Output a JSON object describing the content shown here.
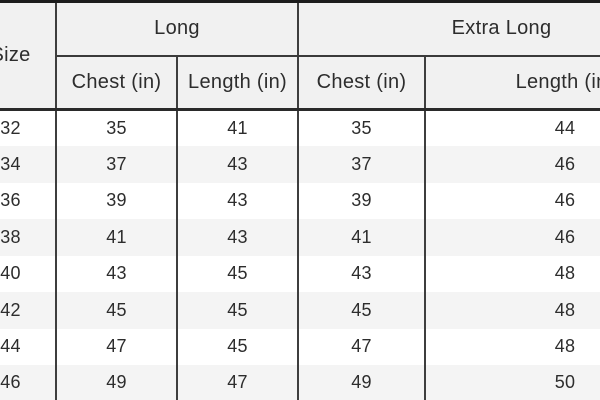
{
  "page": {
    "background": "#ffffff"
  },
  "colors": {
    "header_bg": "#f1f1f1",
    "row_bg": "#ffffff",
    "row_alt_bg": "#f4f4f4",
    "border_dark": "#1c1c1c",
    "border_mid": "#3e3e3e",
    "text": "#2d2d2d"
  },
  "table": {
    "corner_header": "Size",
    "group_headers": [
      "Long",
      "Extra Long"
    ],
    "sub_headers": [
      "Chest (in)",
      "Length (in)",
      "Chest (in)",
      "Length (in)"
    ],
    "rows": [
      [
        "32",
        "35",
        "41",
        "35",
        "44"
      ],
      [
        "34",
        "37",
        "43",
        "37",
        "46"
      ],
      [
        "36",
        "39",
        "43",
        "39",
        "46"
      ],
      [
        "38",
        "41",
        "43",
        "41",
        "46"
      ],
      [
        "40",
        "43",
        "45",
        "43",
        "48"
      ],
      [
        "42",
        "45",
        "45",
        "45",
        "48"
      ],
      [
        "44",
        "47",
        "45",
        "47",
        "48"
      ],
      [
        "46",
        "49",
        "47",
        "49",
        "50"
      ]
    ]
  }
}
